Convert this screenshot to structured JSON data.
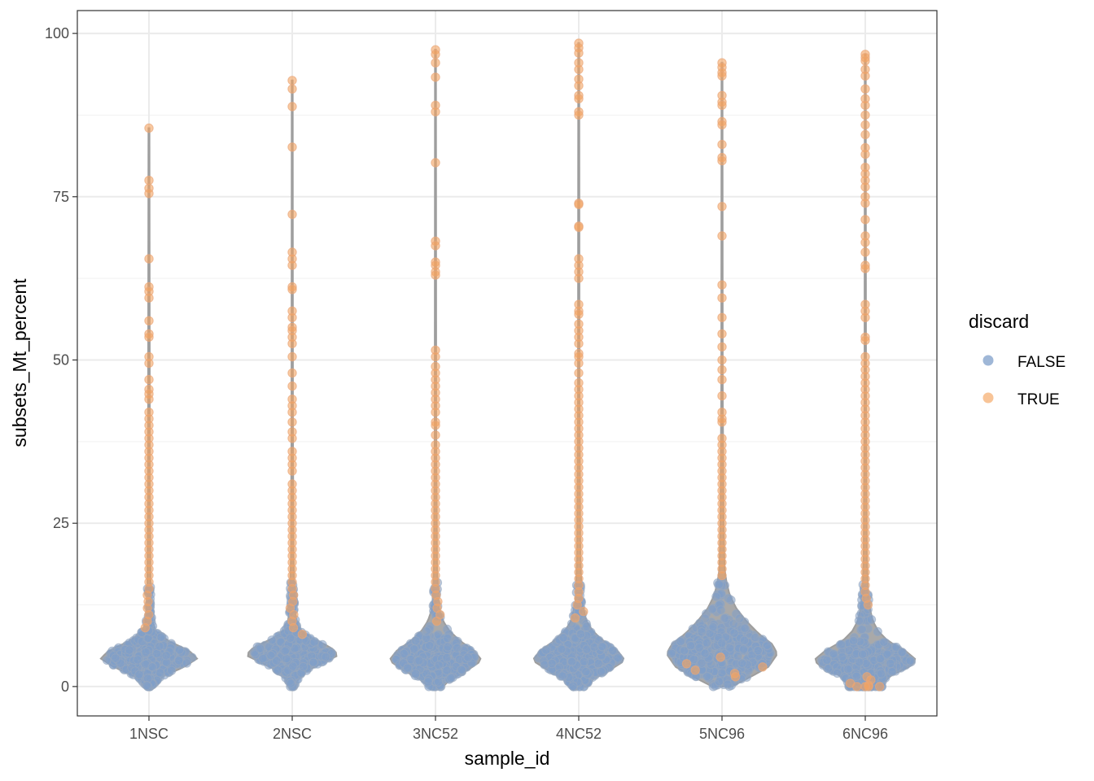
{
  "chart_data": {
    "type": "violin",
    "xlabel": "sample_id",
    "ylabel": "subsets_Mt_percent",
    "ylim": [
      -4.5,
      103.5
    ],
    "y_ticks": [
      0,
      25,
      50,
      75,
      100
    ],
    "categories": [
      "1NSC",
      "2NSC",
      "3NC52",
      "4NC52",
      "5NC96",
      "6NC96"
    ],
    "grid": true,
    "legend": {
      "title": "discard",
      "position": "right",
      "entries": [
        {
          "label": "FALSE",
          "color": "#7f9fc9"
        },
        {
          "label": "TRUE",
          "color": "#f4a460"
        }
      ]
    },
    "colors": {
      "violin_fill": "#a9a9a9",
      "violin_outline": "#9e9e9e",
      "false_point": "#7f9fc9",
      "true_point": "#f4a460"
    },
    "violins": [
      {
        "sample": "1NSC",
        "max": 85.5,
        "min": 0,
        "width_profile": [
          [
            0,
            0.03
          ],
          [
            1.5,
            0.2
          ],
          [
            3,
            0.55
          ],
          [
            4.3,
            0.75
          ],
          [
            5.5,
            0.62
          ],
          [
            7,
            0.3
          ],
          [
            8.5,
            0.1
          ],
          [
            10,
            0.05
          ],
          [
            15,
            0.025
          ],
          [
            30,
            0.015
          ],
          [
            85.5,
            0.008
          ]
        ],
        "true_points": [
          85.5,
          77.5,
          76.3,
          75.5,
          65.5,
          61.2,
          60.5,
          59.5,
          56,
          54,
          53.5,
          50.5,
          49.5,
          47,
          45.5,
          44.8,
          44,
          42,
          41,
          40,
          39,
          38,
          37,
          36,
          35,
          34,
          33,
          32,
          31,
          30,
          29,
          28,
          27,
          26,
          25,
          24,
          23,
          22,
          21,
          20,
          19,
          18,
          17,
          16,
          15,
          14,
          13,
          12,
          11,
          10,
          9
        ]
      },
      {
        "sample": "2NSC",
        "max": 92.8,
        "min": 0,
        "width_profile": [
          [
            0,
            0.03
          ],
          [
            2,
            0.15
          ],
          [
            3.5,
            0.45
          ],
          [
            4.8,
            0.72
          ],
          [
            6,
            0.6
          ],
          [
            7.5,
            0.28
          ],
          [
            9,
            0.08
          ],
          [
            12,
            0.04
          ],
          [
            20,
            0.02
          ],
          [
            40,
            0.012
          ],
          [
            92.8,
            0.008
          ]
        ],
        "true_points": [
          92.8,
          91.5,
          88.8,
          82.6,
          72.3,
          66.5,
          65.5,
          64.5,
          61.2,
          60.8,
          57.5,
          56.5,
          55,
          54.5,
          53.5,
          52.5,
          50.5,
          48,
          46,
          44,
          43,
          42,
          40.5,
          39,
          38,
          36,
          35,
          34,
          33,
          31,
          30,
          29,
          28,
          27,
          26,
          25,
          24,
          23,
          22,
          21,
          20,
          19,
          18,
          17,
          16,
          15,
          14,
          13,
          12,
          11,
          10,
          9,
          8
        ]
      },
      {
        "sample": "3NC52",
        "max": 97.5,
        "min": 0,
        "width_profile": [
          [
            0,
            0.12
          ],
          [
            1,
            0.22
          ],
          [
            2.5,
            0.5
          ],
          [
            4,
            0.72
          ],
          [
            5.5,
            0.6
          ],
          [
            7,
            0.38
          ],
          [
            8.5,
            0.22
          ],
          [
            10,
            0.12
          ],
          [
            12,
            0.05
          ],
          [
            18,
            0.025
          ],
          [
            40,
            0.012
          ],
          [
            97.5,
            0.008
          ]
        ],
        "true_points": [
          97.5,
          96.8,
          95.5,
          93.3,
          89,
          88,
          80.2,
          68.2,
          67.5,
          65,
          64.5,
          63.5,
          63,
          51.5,
          50.5,
          49,
          48,
          47,
          46,
          45,
          44,
          43,
          42,
          40.5,
          40,
          38.5,
          37,
          36,
          35,
          34,
          33,
          32,
          31,
          30,
          29,
          28,
          27,
          26,
          25,
          24,
          23,
          22,
          21,
          20,
          19,
          18,
          17,
          16,
          15,
          14,
          13,
          12,
          11,
          10
        ]
      },
      {
        "sample": "4NC52",
        "max": 98.5,
        "min": 0,
        "width_profile": [
          [
            0,
            0.1
          ],
          [
            1,
            0.2
          ],
          [
            2.5,
            0.48
          ],
          [
            4,
            0.72
          ],
          [
            5.5,
            0.6
          ],
          [
            7,
            0.38
          ],
          [
            8.5,
            0.22
          ],
          [
            10,
            0.12
          ],
          [
            13,
            0.05
          ],
          [
            20,
            0.025
          ],
          [
            45,
            0.012
          ],
          [
            98.5,
            0.008
          ]
        ],
        "true_points": [
          98.5,
          97.8,
          97,
          95.5,
          94.5,
          93,
          92,
          90.5,
          90,
          88,
          87.5,
          74,
          73.8,
          70.5,
          70.3,
          65.5,
          64.5,
          63.5,
          62.5,
          58.5,
          57.5,
          57,
          55.5,
          54.5,
          53.5,
          52.5,
          51,
          50.5,
          49.5,
          48,
          46.5,
          45.5,
          44.5,
          43.5,
          42.5,
          41.5,
          40.5,
          39.5,
          38.5,
          37.5,
          36.5,
          35.5,
          34.5,
          33.5,
          32.5,
          31.5,
          30.5,
          29.5,
          28.5,
          27.5,
          26.5,
          25.5,
          24.5,
          23.5,
          22.5,
          21.5,
          20.5,
          19.5,
          18.5,
          17.5,
          16.5,
          15.5,
          14.5,
          13.5,
          12.5,
          11.5,
          10.5
        ]
      },
      {
        "sample": "5NC96",
        "max": 95.5,
        "min": 0,
        "width_profile": [
          [
            0,
            0.15
          ],
          [
            1.5,
            0.45
          ],
          [
            3,
            0.72
          ],
          [
            5,
            0.86
          ],
          [
            6.5,
            0.78
          ],
          [
            8,
            0.58
          ],
          [
            10,
            0.38
          ],
          [
            12,
            0.22
          ],
          [
            14,
            0.12
          ],
          [
            16,
            0.07
          ],
          [
            18,
            0.04
          ],
          [
            25,
            0.025
          ],
          [
            45,
            0.012
          ],
          [
            95.5,
            0.008
          ]
        ],
        "true_points": [
          95.5,
          94.8,
          94,
          93.5,
          90.5,
          89.5,
          89,
          86.5,
          86,
          83,
          81,
          80.5,
          73.5,
          69,
          61.5,
          59.5,
          56.5,
          54,
          52,
          50,
          48.5,
          47,
          44.5,
          42,
          41,
          40.5,
          38,
          37,
          36,
          35,
          34,
          33,
          32,
          31,
          30,
          29,
          28,
          27,
          26,
          25,
          24,
          23,
          22,
          21,
          20,
          19,
          18,
          17,
          4.5,
          3.5,
          3,
          2.5,
          2,
          1.5
        ]
      },
      {
        "sample": "6NC96",
        "max": 96.8,
        "min": 0,
        "width_profile": [
          [
            0,
            0.28
          ],
          [
            0.8,
            0.3
          ],
          [
            1.8,
            0.42
          ],
          [
            3,
            0.68
          ],
          [
            4,
            0.8
          ],
          [
            5.5,
            0.62
          ],
          [
            7,
            0.35
          ],
          [
            8.5,
            0.2
          ],
          [
            10,
            0.12
          ],
          [
            12,
            0.07
          ],
          [
            15,
            0.04
          ],
          [
            20,
            0.025
          ],
          [
            45,
            0.012
          ],
          [
            96.8,
            0.008
          ]
        ],
        "true_points": [
          96.8,
          96.3,
          95.8,
          94.5,
          93.5,
          91.5,
          90,
          89,
          87.5,
          86,
          84.5,
          82.5,
          81.5,
          79.5,
          78.5,
          77.5,
          76.5,
          75,
          74,
          71.5,
          69,
          68,
          66.5,
          64.5,
          64,
          58.5,
          57.5,
          56.5,
          53.5,
          53,
          50.5,
          49.5,
          48.5,
          47.5,
          46.5,
          45.5,
          44.5,
          43.5,
          42.5,
          41.5,
          40.5,
          39.5,
          38.5,
          37.5,
          36.5,
          35.5,
          34.5,
          33.5,
          32.5,
          31.5,
          30.5,
          29.5,
          28.5,
          27.5,
          26.5,
          25.5,
          24.5,
          23.5,
          22.5,
          21.5,
          20.5,
          19.5,
          18.5,
          17.5,
          16.5,
          15.5,
          14.5,
          13.5,
          12.5,
          1.5,
          1,
          0.5,
          0.2,
          0,
          0,
          0,
          0
        ]
      }
    ]
  }
}
